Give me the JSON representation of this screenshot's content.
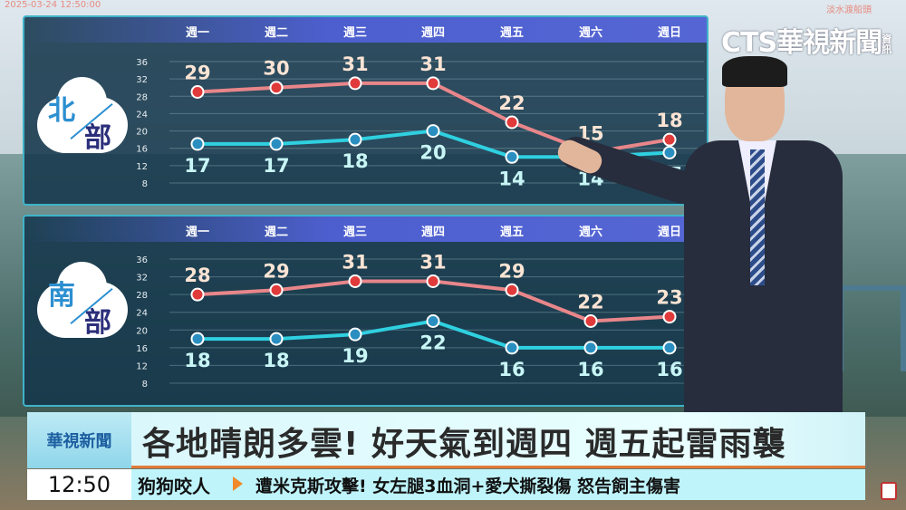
{
  "overlay": {
    "timestamp": "2025-03-24 12:50:00",
    "location": "淡水渡船頭",
    "logo": "CTS華視新聞",
    "logo_sub": "資訊"
  },
  "chart_data": [
    {
      "type": "line",
      "region_a": "北",
      "region_b": "部",
      "categories": [
        "週一",
        "週二",
        "週三",
        "週四",
        "週五",
        "週六",
        "週日"
      ],
      "yticks": [
        "36",
        "32",
        "28",
        "24",
        "20",
        "16",
        "12",
        "8"
      ],
      "ylim": [
        8,
        36
      ],
      "grid": true,
      "series": [
        {
          "role": "high",
          "color": "#e8868a",
          "values": [
            29,
            30,
            31,
            31,
            22,
            15,
            18
          ]
        },
        {
          "role": "low",
          "color": "#2fd0e0",
          "values": [
            17,
            17,
            18,
            20,
            14,
            14,
            15
          ]
        }
      ]
    },
    {
      "type": "line",
      "region_a": "南",
      "region_b": "部",
      "categories": [
        "週一",
        "週二",
        "週三",
        "週四",
        "週五",
        "週六",
        "週日"
      ],
      "yticks": [
        "36",
        "32",
        "28",
        "24",
        "20",
        "16",
        "12",
        "8"
      ],
      "ylim": [
        8,
        36
      ],
      "grid": true,
      "series": [
        {
          "role": "high",
          "color": "#e8868a",
          "values": [
            28,
            29,
            31,
            31,
            29,
            22,
            23
          ]
        },
        {
          "role": "low",
          "color": "#2fd0e0",
          "values": [
            18,
            18,
            19,
            22,
            16,
            16,
            16
          ]
        }
      ]
    }
  ],
  "banner": {
    "brand": "華視新聞",
    "headline": "各地晴朗多雲! 好天氣到週四 週五起雷雨襲"
  },
  "ticker": {
    "time": "12:50",
    "topic": "狗狗咬人",
    "text": "遭米克斯攻擊! 女左腿3血洞+愛犬撕裂傷 怒告飼主傷害"
  }
}
